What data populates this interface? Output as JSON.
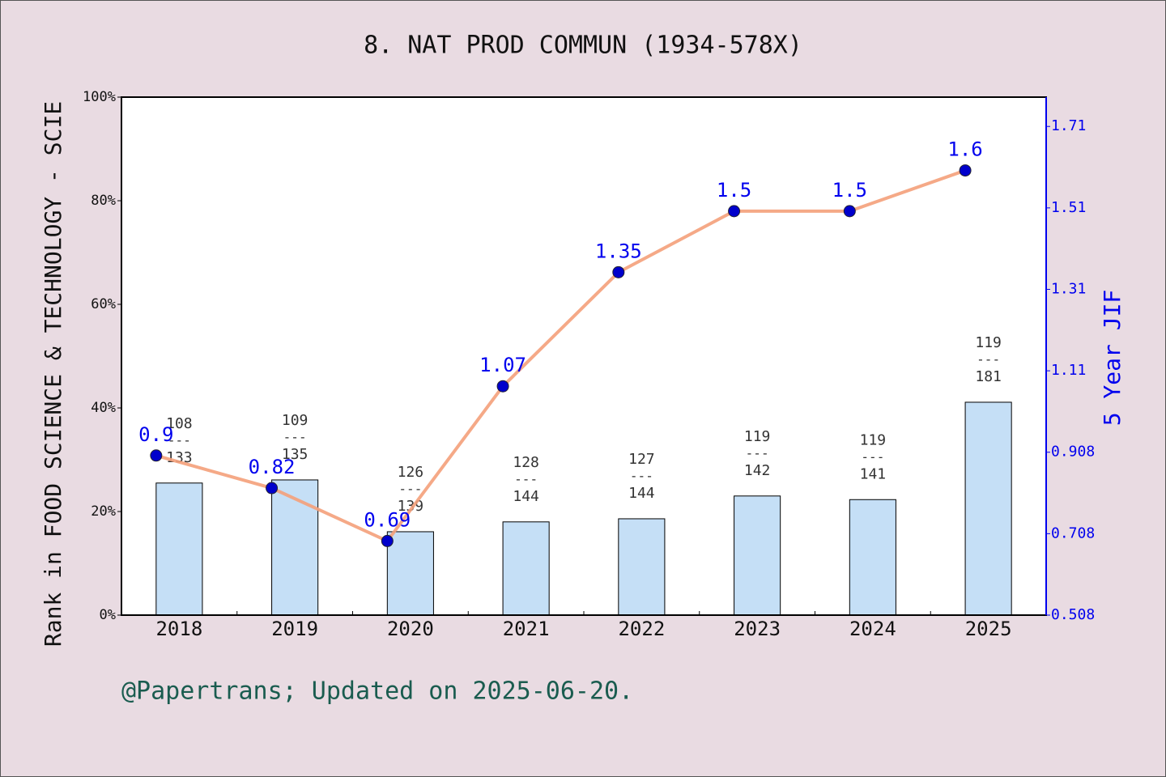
{
  "chart_data": {
    "type": "bar-line",
    "title": "8. NAT PROD COMMUN (1934-578X)",
    "y_label": "Rank in FOOD SCIENCE & TECHNOLOGY - SCIE",
    "y2_label": "5 Year JIF",
    "footer": "@Papertrans; Updated on 2025-06-20.",
    "categories": [
      "2018",
      "2019",
      "2020",
      "2021",
      "2022",
      "2023",
      "2024",
      "2025"
    ],
    "series": [
      {
        "type": "bar",
        "color": "#c5dff6",
        "values": [
          25.5,
          26.1,
          16.1,
          18,
          18.6,
          23,
          22.3,
          41.1
        ],
        "rank_labels": [
          "108",
          "109",
          "126",
          "128",
          "127",
          "119",
          "119",
          "119"
        ],
        "total_labels": [
          "133",
          "135",
          "139",
          "144",
          "144",
          "142",
          "141",
          "181"
        ],
        "separator": "---"
      },
      {
        "type": "line",
        "axis": "y2",
        "color": "#f4a07a",
        "marker_color": "#0000cc",
        "values": [
          0.9,
          0.82,
          0.69,
          1.07,
          1.35,
          1.5,
          1.5,
          1.6
        ]
      }
    ],
    "ylim": [
      0,
      100
    ],
    "yticks": [
      {
        "value": 0,
        "label": "0%"
      },
      {
        "value": 20,
        "label": "20%"
      },
      {
        "value": 40,
        "label": "40%"
      },
      {
        "value": 60,
        "label": "60%"
      },
      {
        "value": 80,
        "label": "80%"
      },
      {
        "value": 100,
        "label": "100%"
      }
    ],
    "y2lim": [
      0.508,
      1.78
    ],
    "y2ticks": [
      0.508,
      0.708,
      0.908,
      {
        "value": 1.108,
        "label": "1.11"
      },
      {
        "value": 1.308,
        "label": "1.31"
      },
      {
        "value": 1.508,
        "label": "1.51"
      },
      {
        "value": 1.708,
        "label": "1.71"
      }
    ]
  }
}
